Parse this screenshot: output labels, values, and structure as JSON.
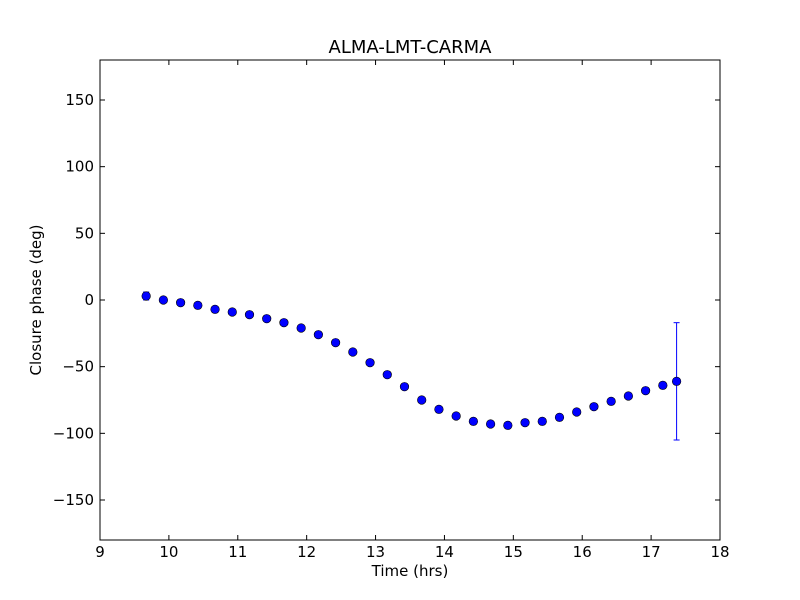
{
  "chart_data": {
    "type": "scatter",
    "title": "ALMA-LMT-CARMA",
    "xlabel": "Time (hrs)",
    "ylabel": "Closure phase (deg)",
    "xlim": [
      9,
      18
    ],
    "ylim": [
      -180,
      180
    ],
    "xticks": [
      "9",
      "10",
      "11",
      "12",
      "13",
      "14",
      "15",
      "16",
      "17",
      "18"
    ],
    "yticks": [
      "−150",
      "−100",
      "−50",
      "0",
      "50",
      "100",
      "150"
    ],
    "grid": false,
    "legend": "none",
    "colors": {
      "marker": "#0000ff",
      "marker_edge": "#000000",
      "errorbar": "#0000ff"
    },
    "series": [
      {
        "x": [
          9.67,
          9.92,
          10.17,
          10.42,
          10.67,
          10.92,
          11.17,
          11.42,
          11.67,
          11.92,
          12.17,
          12.42,
          12.67,
          12.92,
          13.17,
          13.42,
          13.67,
          13.92,
          14.17,
          14.42,
          14.67,
          14.92,
          15.17,
          15.42,
          15.67,
          15.92,
          16.17,
          16.42,
          16.67,
          16.92,
          17.17,
          17.37
        ],
        "y": [
          3,
          0,
          -2,
          -4,
          -7,
          -9,
          -11,
          -14,
          -17,
          -21,
          -26,
          -32,
          -39,
          -47,
          -56,
          -65,
          -75,
          -82,
          -87,
          -91,
          -93,
          -94,
          -92,
          -91,
          -88,
          -84,
          -80,
          -76,
          -72,
          -68,
          -64,
          -61
        ],
        "yerr": [
          3,
          1,
          1,
          1,
          1,
          1,
          1,
          1,
          1,
          1,
          1,
          1,
          1,
          1,
          1,
          1,
          1,
          1,
          1,
          1,
          1,
          1,
          1,
          1,
          1,
          1,
          1,
          1,
          1,
          1,
          1,
          44
        ]
      }
    ]
  }
}
